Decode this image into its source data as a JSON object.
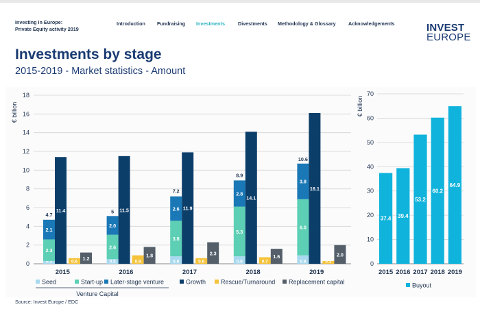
{
  "header": {
    "org_line1": "Investing in Europe:",
    "org_line2": "Private Equity activity 2019",
    "nav": [
      {
        "label": "Introduction",
        "active": false
      },
      {
        "label": "Fundraising",
        "active": false
      },
      {
        "label": "Investments",
        "active": true
      },
      {
        "label": "Divestments",
        "active": false
      },
      {
        "label": "Methodology & Glossary",
        "active": false
      },
      {
        "label": "Acknowledgements",
        "active": false
      }
    ],
    "logo_line1": "INVEST",
    "logo_line2": "EUROPE"
  },
  "page": {
    "title": "Investments by stage",
    "subtitle": "2015-2019 - Market statistics - Amount",
    "source": "Source: Invest Europe / EDC"
  },
  "colors": {
    "seed": "#a8d9ee",
    "startup": "#5ccfb4",
    "later": "#1a78b6",
    "growth": "#0c3e6a",
    "rescue": "#f5c33b",
    "replacement": "#545f6a",
    "buyout": "#0fb3dc",
    "text": "#1f3350",
    "grid": "#d3d3d3"
  },
  "chart_data": [
    {
      "type": "bar",
      "ylabel": "€ billion",
      "ylim": [
        0,
        18
      ],
      "yticks": [
        0,
        2,
        4,
        6,
        8,
        10,
        12,
        14,
        16,
        18
      ],
      "categories": [
        "2015",
        "2016",
        "2017",
        "2018",
        "2019"
      ],
      "group_label": "Venture Capital",
      "series": [
        {
          "name": "Seed",
          "key": "seed",
          "stack": "vc",
          "values": [
            0.3,
            0.5,
            0.8,
            0.8,
            0.9
          ]
        },
        {
          "name": "Start-up",
          "key": "startup",
          "stack": "vc",
          "values": [
            2.3,
            2.6,
            3.8,
            5.3,
            6.0
          ]
        },
        {
          "name": "Later-stage venture",
          "key": "later",
          "stack": "vc",
          "values": [
            2.1,
            2.0,
            2.6,
            2.8,
            3.8
          ]
        },
        {
          "name": "Growth",
          "key": "growth",
          "stack": "growth",
          "values": [
            11.4,
            11.5,
            11.9,
            14.1,
            16.1
          ]
        },
        {
          "name": "Rescue/Turnaround",
          "key": "rescue",
          "stack": "rescue",
          "values": [
            0.6,
            0.9,
            0.6,
            0.7,
            0.3
          ]
        },
        {
          "name": "Replacement capital",
          "key": "replacement",
          "stack": "replacement",
          "values": [
            1.2,
            1.8,
            2.3,
            1.6,
            2.0
          ]
        }
      ],
      "vc_totals": [
        4.7,
        5.0,
        7.2,
        8.9,
        10.6
      ],
      "series_labels": {
        "seed": [
          "0.3",
          "0.5",
          "0.8",
          "0.8",
          "0.9"
        ],
        "startup": [
          "2.3",
          "2.6",
          "3.8",
          "5.3",
          "6.0"
        ],
        "later": [
          "2.1",
          "2.0",
          "2.6",
          "2.8",
          "3.8"
        ],
        "growth": [
          "11.4",
          "11.5",
          "11.9",
          "14.1",
          "16.1"
        ],
        "rescue": [
          "0.6",
          "0.9",
          "0.6",
          "0.7",
          "0.3"
        ],
        "replacement": [
          "1.2",
          "1.8",
          "2.3",
          "1.6",
          "2.0"
        ]
      },
      "legend_position": "bottom"
    },
    {
      "type": "bar",
      "ylabel": "€ billion",
      "ylim": [
        0,
        70
      ],
      "yticks": [
        0,
        10,
        20,
        30,
        40,
        50,
        60,
        70
      ],
      "categories": [
        "2015",
        "2016",
        "2017",
        "2018",
        "2019"
      ],
      "series": [
        {
          "name": "Buyout",
          "key": "buyout",
          "values": [
            37.4,
            39.4,
            53.2,
            60.2,
            64.9
          ]
        }
      ],
      "legend_position": "bottom"
    }
  ]
}
